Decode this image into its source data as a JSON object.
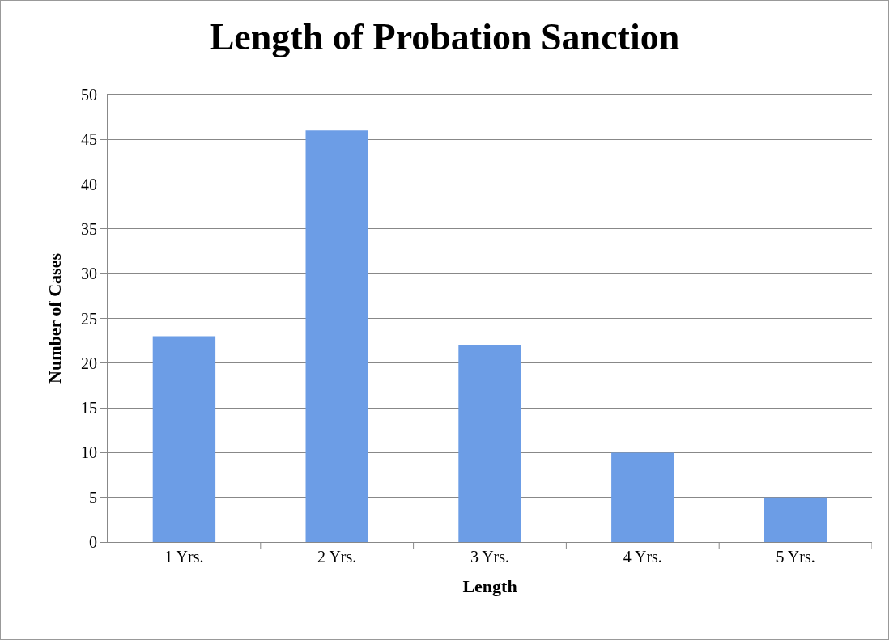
{
  "chart_data": {
    "type": "bar",
    "title": "Length of Probation Sanction",
    "xlabel": "Length",
    "ylabel": "Number of Cases",
    "categories": [
      "1 Yrs.",
      "2 Yrs.",
      "3 Yrs.",
      "4 Yrs.",
      "5 Yrs."
    ],
    "values": [
      23,
      46,
      22,
      10,
      5
    ],
    "color": "#6c9de6",
    "ylim": [
      0,
      50
    ],
    "yticks": [
      0,
      5,
      10,
      15,
      20,
      25,
      30,
      35,
      40,
      45,
      50
    ],
    "grid": "y"
  }
}
